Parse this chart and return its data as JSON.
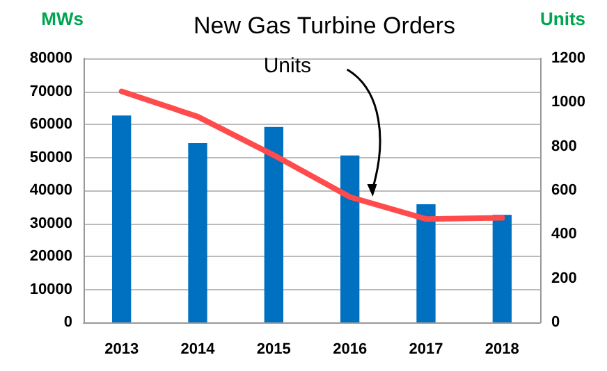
{
  "chart_data": {
    "type": "bar",
    "title": "New Gas Turbine Orders",
    "ylabel": "MWs",
    "y2label": "Units",
    "annotations": [
      "Units"
    ],
    "categories": [
      "2013",
      "2014",
      "2015",
      "2016",
      "2017",
      "2018"
    ],
    "series": [
      {
        "color": "#0070c0",
        "values": [
          62700,
          54300,
          59200,
          50600,
          35800,
          32600
        ]
      },
      {
        "type": "line",
        "axis": "y2",
        "color": "#ff4b4b",
        "values": [
          1050,
          935,
          760,
          570,
          470,
          475
        ]
      }
    ],
    "ylim": [
      0,
      80000
    ],
    "yticks": [
      0,
      10000,
      20000,
      30000,
      40000,
      50000,
      60000,
      70000,
      80000
    ],
    "y2lim": [
      0,
      1200
    ],
    "y2ticks": [
      0,
      200,
      400,
      600,
      800,
      1000,
      1200
    ],
    "grid": "y",
    "marker": "none",
    "line_style": "solid"
  }
}
